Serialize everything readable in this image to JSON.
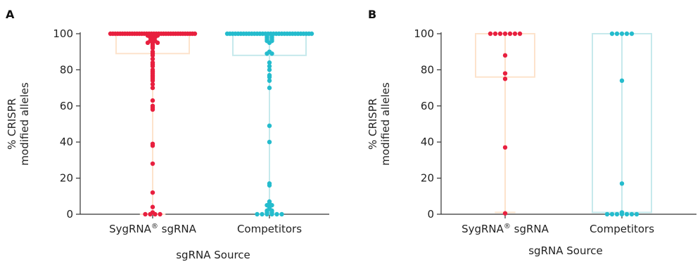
{
  "chart_data": [
    {
      "panel_label": "A",
      "type": "scatter",
      "categories": [
        "SygRNA® sgRNA",
        "Competitors"
      ],
      "ylabel_lines": [
        "% CRISPR",
        "modified alleles"
      ],
      "xlabel": "sgRNA Source",
      "ylim": [
        0,
        100
      ],
      "yticks": [
        0,
        20,
        40,
        60,
        80,
        100
      ],
      "colors": {
        "point_0": "#e8203f",
        "point_1": "#25bccd",
        "box_0": "#fde3cc",
        "box_1": "#c6e9ec"
      },
      "boxes": [
        {
          "category": "SygRNA® sgRNA",
          "min": 0,
          "q1": 89,
          "q3": 100,
          "max": 100
        },
        {
          "category": "Competitors",
          "min": 0,
          "q1": 88,
          "q3": 100,
          "max": 100
        }
      ],
      "series": [
        {
          "category": "SygRNA® sgRNA",
          "values": [
            100,
            100,
            100,
            100,
            100,
            100,
            100,
            100,
            100,
            100,
            100,
            100,
            100,
            100,
            100,
            100,
            100,
            100,
            100,
            100,
            100,
            100,
            100,
            100,
            100,
            100,
            100,
            100,
            100,
            100,
            100,
            100,
            100,
            100,
            100,
            100,
            99,
            99,
            99,
            98,
            98,
            97,
            96,
            96,
            95,
            95,
            95,
            94,
            93,
            92,
            90,
            89,
            88,
            86,
            84,
            83,
            82,
            80,
            79,
            78,
            77,
            76,
            75,
            74,
            72,
            70,
            63,
            60,
            59,
            58,
            39,
            38,
            28,
            12,
            4,
            1,
            0,
            0,
            0,
            0
          ]
        },
        {
          "category": "Competitors",
          "values": [
            100,
            100,
            100,
            100,
            100,
            100,
            100,
            100,
            100,
            100,
            100,
            100,
            100,
            100,
            100,
            100,
            100,
            100,
            100,
            100,
            100,
            100,
            100,
            100,
            100,
            100,
            100,
            100,
            100,
            100,
            100,
            100,
            99,
            99,
            98,
            98,
            97,
            97,
            96,
            96,
            95,
            90,
            89,
            89,
            84,
            82,
            80,
            77,
            76,
            74,
            70,
            49,
            40,
            17,
            16,
            7,
            6,
            5,
            5,
            4,
            3,
            2,
            2,
            1,
            1,
            0,
            0,
            0,
            0,
            0,
            0
          ]
        }
      ]
    },
    {
      "panel_label": "B",
      "type": "scatter",
      "categories": [
        "SygRNA® sgRNA",
        "Competitors"
      ],
      "ylabel_lines": [
        "% CRISPR",
        "modified alleles"
      ],
      "xlabel": "sgRNA Source",
      "ylim": [
        0,
        100
      ],
      "yticks": [
        0,
        20,
        40,
        60,
        80,
        100
      ],
      "colors": {
        "point_0": "#e8203f",
        "point_1": "#25bccd",
        "box_0": "#fde3cc",
        "box_1": "#c6e9ec"
      },
      "boxes": [
        {
          "category": "SygRNA® sgRNA",
          "min": 1,
          "q1": 76,
          "q3": 100,
          "max": 100
        },
        {
          "category": "Competitors",
          "min": 0,
          "q1": 1,
          "q3": 100,
          "max": 100
        }
      ],
      "series": [
        {
          "category": "SygRNA® sgRNA",
          "values": [
            100,
            100,
            100,
            100,
            100,
            100,
            100,
            88,
            78,
            75,
            37,
            0.5
          ]
        },
        {
          "category": "Competitors",
          "values": [
            100,
            100,
            100,
            100,
            100,
            74,
            17,
            1,
            0,
            0,
            0,
            0,
            0,
            0,
            0
          ]
        }
      ]
    }
  ]
}
